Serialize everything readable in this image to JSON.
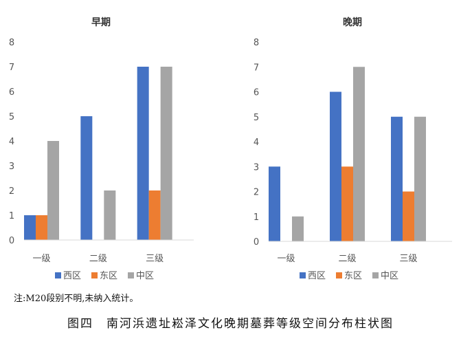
{
  "chart_data": [
    {
      "type": "bar",
      "title": "早期",
      "categories": [
        "一级",
        "二级",
        "三级"
      ],
      "series": [
        {
          "name": "西区",
          "values": [
            1,
            5,
            7
          ]
        },
        {
          "name": "东区",
          "values": [
            1,
            0,
            2
          ]
        },
        {
          "name": "中区",
          "values": [
            4,
            2,
            7
          ]
        }
      ],
      "ylim": [
        0,
        8
      ],
      "yticks": [
        "0",
        "1",
        "2",
        "3",
        "4",
        "5",
        "6",
        "7",
        "8"
      ],
      "grid": false,
      "legend": "bottom"
    },
    {
      "type": "bar",
      "title": "晚期",
      "categories": [
        "一级",
        "二级",
        "三级"
      ],
      "series": [
        {
          "name": "西区",
          "values": [
            3,
            6,
            5
          ]
        },
        {
          "name": "东区",
          "values": [
            0,
            3,
            2
          ]
        },
        {
          "name": "中区",
          "values": [
            1,
            7,
            5
          ]
        }
      ],
      "ylim": [
        0,
        8
      ],
      "yticks": [
        "0",
        "1",
        "2",
        "3",
        "4",
        "5",
        "6",
        "7",
        "8"
      ],
      "grid": false,
      "legend": "bottom"
    }
  ],
  "colors": {
    "西区": "#4472c4",
    "东区": "#ed7d31",
    "中区": "#a5a5a5"
  },
  "note": "注:M20段别不明,未纳入统计。",
  "caption": "图四　南河浜遗址崧泽文化晚期墓葬等级空间分布柱状图"
}
